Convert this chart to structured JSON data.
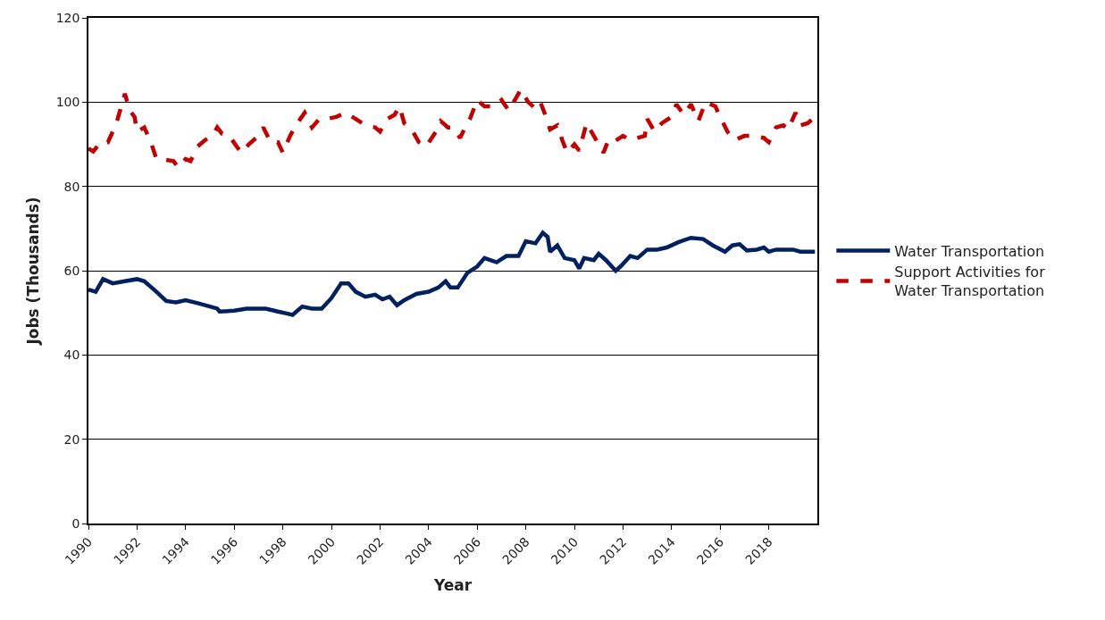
{
  "chart_data": {
    "type": "line",
    "xlabel": "Year",
    "ylabel": "Jobs (Thousands)",
    "xlim": [
      1990,
      2020
    ],
    "xticks": [
      1990,
      1992,
      1994,
      1996,
      1998,
      2000,
      2002,
      2004,
      2006,
      2008,
      2010,
      2012,
      2014,
      2016,
      2018
    ],
    "ylim": [
      0,
      120
    ],
    "yticks": [
      0,
      20,
      40,
      60,
      80,
      100,
      120
    ],
    "grid": "y",
    "legend": "right",
    "series": [
      {
        "name": "Water Transportation",
        "color": "#002060",
        "line_style": "solid",
        "x": [
          1990,
          1990.3,
          1990.6,
          1991,
          1991.5,
          1992,
          1992.3,
          1992.8,
          1993.2,
          1993.6,
          1994,
          1994.5,
          1995,
          1995.3,
          1995.4,
          1996,
          1996.5,
          1997.3,
          1997.8,
          1998.2,
          1998.4,
          1998.8,
          1999.2,
          1999.6,
          2000,
          2000.4,
          2000.7,
          2001,
          2001.4,
          2001.8,
          2002.1,
          2002.4,
          2002.7,
          2003,
          2003.5,
          2004,
          2004.4,
          2004.7,
          2004.9,
          2005.2,
          2005.6,
          2006,
          2006.3,
          2006.8,
          2007.2,
          2007.7,
          2008,
          2008.4,
          2008.7,
          2008.9,
          2009,
          2009.3,
          2009.6,
          2010,
          2010.2,
          2010.4,
          2010.8,
          2011,
          2011.3,
          2011.7,
          2011.9,
          2012.3,
          2012.6,
          2013,
          2013.4,
          2013.8,
          2014.3,
          2014.8,
          2015.3,
          2015.7,
          2016.2,
          2016.5,
          2016.8,
          2017.1,
          2017.5,
          2017.8,
          2018,
          2018.3,
          2018.7,
          2019,
          2019.3,
          2019.9
        ],
        "values": [
          55.5,
          55,
          58,
          57,
          57.5,
          58,
          57.5,
          55,
          52.8,
          52.5,
          53,
          52.3,
          51.5,
          51,
          50.3,
          50.5,
          51,
          51,
          50.3,
          49.8,
          49.5,
          51.5,
          51,
          51,
          53.5,
          57,
          57,
          55,
          53.8,
          54.3,
          53.2,
          53.8,
          51.8,
          53,
          54.5,
          55,
          56,
          57.5,
          56,
          56,
          59.5,
          61,
          63,
          62,
          63.5,
          63.5,
          67,
          66.5,
          69,
          68,
          64.5,
          66,
          63,
          62.5,
          60.5,
          63,
          62.5,
          64,
          62.5,
          60,
          61,
          63.5,
          63,
          65,
          65,
          65.5,
          66.8,
          67.8,
          67.5,
          66,
          64.5,
          66,
          66.3,
          64.8,
          65,
          65.5,
          64.5,
          65,
          65,
          65,
          64.5,
          64.5
        ]
      },
      {
        "name": "Support Activities for Water Transportation",
        "color": "#c00000",
        "line_style": "dashed",
        "x": [
          1990,
          1990.2,
          1990.5,
          1990.8,
          1991,
          1991.2,
          1991.4,
          1991.5,
          1991.7,
          1991.9,
          1992,
          1992.3,
          1992.6,
          1992.8,
          1993.2,
          1993.5,
          1993.7,
          1994,
          1994.2,
          1994.5,
          1994.8,
          1995.1,
          1995.3,
          1995.5,
          1995.8,
          1996.1,
          1996.3,
          1996.6,
          1997,
          1997.2,
          1997.5,
          1997.8,
          1998,
          1998.3,
          1998.6,
          1998.9,
          1999.2,
          1999.5,
          1999.8,
          2000.2,
          2000.6,
          2001,
          2001.4,
          2001.8,
          2002,
          2002.3,
          2002.6,
          2002.8,
          2003,
          2003.3,
          2003.6,
          2003.9,
          2004.3,
          2004.5,
          2004.8,
          2005,
          2005.3,
          2005.5,
          2005.7,
          2006,
          2006.3,
          2006.7,
          2007,
          2007.3,
          2007.6,
          2007.8,
          2008.1,
          2008.4,
          2008.6,
          2008.8,
          2009,
          2009.3,
          2009.5,
          2009.7,
          2010,
          2010.2,
          2010.5,
          2010.7,
          2011,
          2011.2,
          2011.4,
          2011.6,
          2012,
          2012.3,
          2012.6,
          2012.9,
          2013,
          2013.3,
          2013.6,
          2014,
          2014.2,
          2014.5,
          2014.8,
          2015.1,
          2015.4,
          2015.8,
          2016,
          2016.3,
          2016.6,
          2017,
          2017.4,
          2017.8,
          2018,
          2018.3,
          2018.6,
          2018.8,
          2019.1,
          2019.3,
          2019.6,
          2019.8
        ],
        "values": [
          89,
          88.3,
          90.5,
          90.5,
          93,
          96,
          100,
          102,
          98,
          96.5,
          93,
          94,
          90,
          86.5,
          86.3,
          86,
          84.5,
          86.5,
          86,
          89.5,
          91,
          92,
          94,
          92.5,
          92,
          89.5,
          88,
          90,
          92,
          94,
          90.5,
          90.5,
          88,
          92,
          95,
          97.5,
          94,
          96,
          96,
          96.5,
          97.5,
          96,
          94.5,
          94,
          93,
          96,
          97,
          99,
          95,
          93.5,
          90.5,
          89.5,
          93,
          95.5,
          94,
          94,
          91.5,
          94,
          96,
          100.5,
          99,
          99,
          100.5,
          98,
          101,
          103,
          100,
          98.5,
          100,
          97,
          93.5,
          94.5,
          91,
          88,
          90,
          88.5,
          95,
          93,
          90,
          88,
          91,
          90.5,
          92,
          91,
          91.5,
          92,
          96,
          93,
          95,
          96.5,
          99.5,
          97,
          99.5,
          95.5,
          100,
          99,
          96.5,
          93,
          91,
          92,
          92,
          91.5,
          90.5,
          94,
          94.5,
          93.5,
          97.5,
          94.5,
          95,
          96
        ]
      }
    ]
  }
}
